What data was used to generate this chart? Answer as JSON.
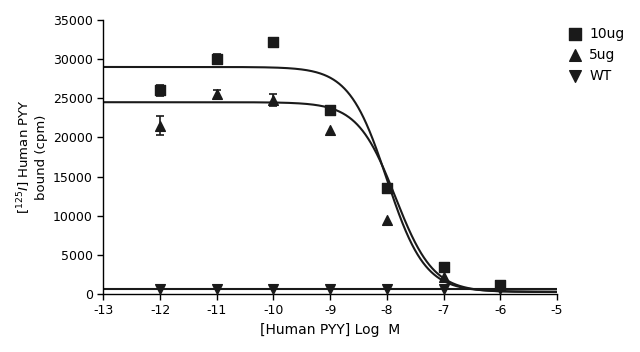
{
  "xlabel": "[Human PYY] Log  M",
  "xlim": [
    -13,
    -5
  ],
  "ylim": [
    0,
    35000
  ],
  "xticks": [
    -13,
    -12,
    -11,
    -10,
    -9,
    -8,
    -7,
    -6,
    -5
  ],
  "yticks": [
    0,
    5000,
    10000,
    15000,
    20000,
    25000,
    30000,
    35000
  ],
  "series": [
    {
      "label": "10ug",
      "marker": "s",
      "color": "#1a1a1a",
      "data_x": [
        -12,
        -11,
        -10,
        -9,
        -8,
        -7,
        -6
      ],
      "data_y": [
        26000,
        30000,
        32200,
        23500,
        13500,
        3500,
        1200
      ],
      "data_yerr": [
        700,
        600,
        0,
        0,
        0,
        0,
        0
      ],
      "top": 29000,
      "bottom": 300,
      "ec50_log": -8.0,
      "hill": 1.3
    },
    {
      "label": "5ug",
      "marker": "^",
      "color": "#1a1a1a",
      "data_x": [
        -12,
        -11,
        -10,
        -9,
        -8,
        -7,
        -6
      ],
      "data_y": [
        21500,
        25500,
        24800,
        21000,
        9500,
        2200,
        1000
      ],
      "data_yerr": [
        1200,
        500,
        800,
        0,
        0,
        0,
        0
      ],
      "top": 24500,
      "bottom": 250,
      "ec50_log": -7.85,
      "hill": 1.3
    },
    {
      "label": "WT",
      "marker": "v",
      "color": "#1a1a1a",
      "data_x": [
        -12,
        -11,
        -10,
        -9,
        -8,
        -7,
        -6
      ],
      "data_y": [
        600,
        600,
        600,
        600,
        600,
        600,
        600
      ],
      "data_yerr": [
        0,
        0,
        0,
        0,
        0,
        0,
        0
      ],
      "top": null,
      "bottom": null,
      "ec50_log": null,
      "hill": null
    }
  ],
  "background_color": "#ffffff",
  "line_color": "#1a1a1a",
  "marker_size": 7
}
